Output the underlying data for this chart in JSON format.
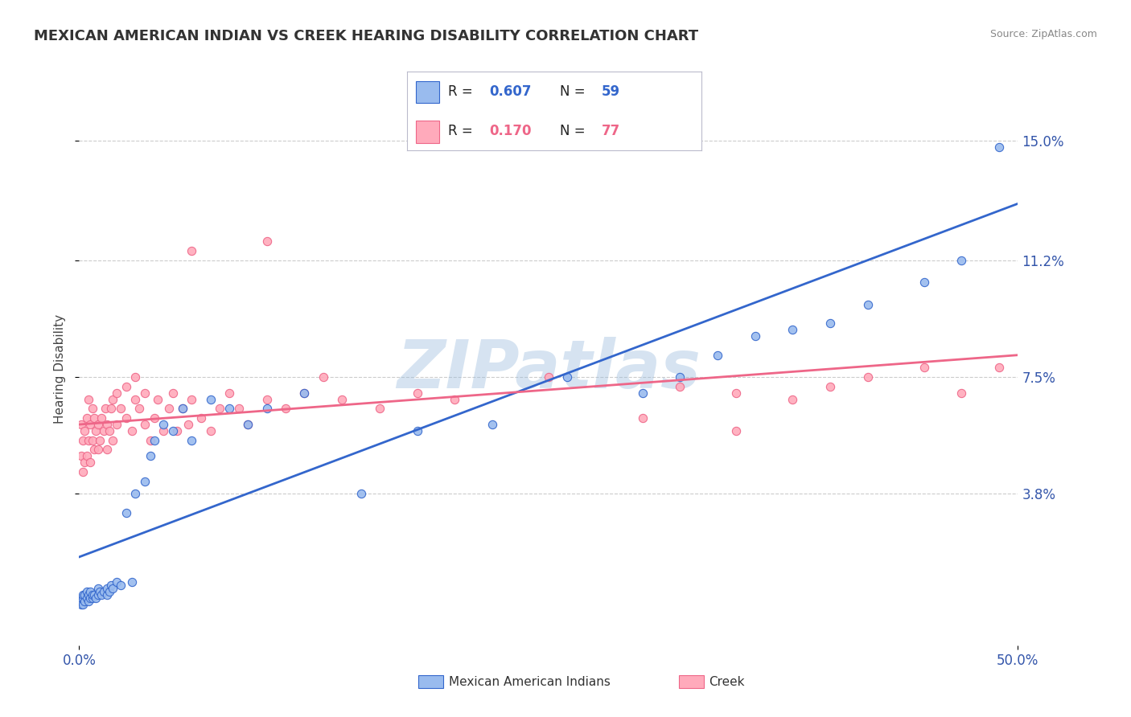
{
  "title": "MEXICAN AMERICAN INDIAN VS CREEK HEARING DISABILITY CORRELATION CHART",
  "source": "Source: ZipAtlas.com",
  "ylabel": "Hearing Disability",
  "legend_label1": "Mexican American Indians",
  "legend_label2": "Creek",
  "r1": "0.607",
  "n1": "59",
  "r2": "0.170",
  "n2": "77",
  "xlim": [
    0.0,
    0.5
  ],
  "ylim": [
    -0.01,
    0.165
  ],
  "xticklabels": [
    "0.0%",
    "50.0%"
  ],
  "ytick_vals": [
    0.038,
    0.075,
    0.112,
    0.15
  ],
  "ytick_labels": [
    "3.8%",
    "7.5%",
    "11.2%",
    "15.0%"
  ],
  "color_blue": "#99BBEE",
  "color_pink": "#FFAABB",
  "line_blue": "#3366CC",
  "line_pink": "#EE6688",
  "watermark": "ZIPatlas",
  "watermark_color": "#99BBDD",
  "background": "#FFFFFF",
  "blue_x": [
    0.001,
    0.001,
    0.001,
    0.002,
    0.002,
    0.002,
    0.003,
    0.003,
    0.004,
    0.004,
    0.005,
    0.005,
    0.006,
    0.006,
    0.007,
    0.007,
    0.008,
    0.009,
    0.01,
    0.01,
    0.011,
    0.012,
    0.013,
    0.015,
    0.015,
    0.016,
    0.017,
    0.018,
    0.02,
    0.022,
    0.025,
    0.028,
    0.03,
    0.035,
    0.038,
    0.04,
    0.045,
    0.05,
    0.055,
    0.06,
    0.07,
    0.08,
    0.09,
    0.1,
    0.12,
    0.15,
    0.18,
    0.22,
    0.26,
    0.3,
    0.32,
    0.34,
    0.36,
    0.38,
    0.4,
    0.42,
    0.45,
    0.47,
    0.49
  ],
  "blue_y": [
    0.003,
    0.004,
    0.005,
    0.003,
    0.005,
    0.006,
    0.004,
    0.006,
    0.005,
    0.007,
    0.004,
    0.006,
    0.005,
    0.007,
    0.005,
    0.006,
    0.006,
    0.005,
    0.006,
    0.008,
    0.007,
    0.006,
    0.007,
    0.006,
    0.008,
    0.007,
    0.009,
    0.008,
    0.01,
    0.009,
    0.032,
    0.01,
    0.038,
    0.042,
    0.05,
    0.055,
    0.06,
    0.058,
    0.065,
    0.055,
    0.068,
    0.065,
    0.06,
    0.065,
    0.07,
    0.038,
    0.058,
    0.06,
    0.075,
    0.07,
    0.075,
    0.082,
    0.088,
    0.09,
    0.092,
    0.098,
    0.105,
    0.112,
    0.148
  ],
  "pink_x": [
    0.001,
    0.001,
    0.002,
    0.002,
    0.003,
    0.003,
    0.004,
    0.004,
    0.005,
    0.005,
    0.006,
    0.006,
    0.007,
    0.007,
    0.008,
    0.008,
    0.009,
    0.01,
    0.01,
    0.011,
    0.012,
    0.013,
    0.014,
    0.015,
    0.015,
    0.016,
    0.017,
    0.018,
    0.018,
    0.02,
    0.02,
    0.022,
    0.025,
    0.025,
    0.028,
    0.03,
    0.03,
    0.032,
    0.035,
    0.035,
    0.038,
    0.04,
    0.042,
    0.045,
    0.048,
    0.05,
    0.052,
    0.055,
    0.058,
    0.06,
    0.065,
    0.07,
    0.075,
    0.08,
    0.085,
    0.09,
    0.1,
    0.11,
    0.12,
    0.13,
    0.14,
    0.16,
    0.18,
    0.2,
    0.25,
    0.3,
    0.32,
    0.35,
    0.38,
    0.4,
    0.42,
    0.45,
    0.47,
    0.49,
    0.35,
    0.06,
    0.1
  ],
  "pink_y": [
    0.05,
    0.06,
    0.045,
    0.055,
    0.048,
    0.058,
    0.05,
    0.062,
    0.055,
    0.068,
    0.048,
    0.06,
    0.055,
    0.065,
    0.052,
    0.062,
    0.058,
    0.052,
    0.06,
    0.055,
    0.062,
    0.058,
    0.065,
    0.052,
    0.06,
    0.058,
    0.065,
    0.055,
    0.068,
    0.06,
    0.07,
    0.065,
    0.062,
    0.072,
    0.058,
    0.068,
    0.075,
    0.065,
    0.06,
    0.07,
    0.055,
    0.062,
    0.068,
    0.058,
    0.065,
    0.07,
    0.058,
    0.065,
    0.06,
    0.068,
    0.062,
    0.058,
    0.065,
    0.07,
    0.065,
    0.06,
    0.068,
    0.065,
    0.07,
    0.075,
    0.068,
    0.065,
    0.07,
    0.068,
    0.075,
    0.062,
    0.072,
    0.07,
    0.068,
    0.072,
    0.075,
    0.078,
    0.07,
    0.078,
    0.058,
    0.115,
    0.118
  ],
  "blue_trend_x": [
    0.0,
    0.5
  ],
  "blue_trend_y": [
    0.018,
    0.13
  ],
  "pink_trend_x": [
    0.0,
    0.5
  ],
  "pink_trend_y": [
    0.06,
    0.082
  ]
}
